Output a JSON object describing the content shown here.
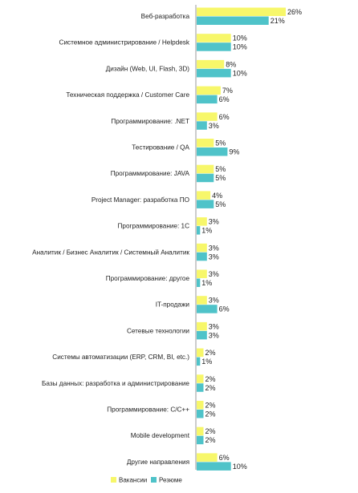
{
  "chart_data": {
    "type": "bar",
    "orientation": "horizontal",
    "title": "",
    "xlabel": "",
    "ylabel": "",
    "unit": "%",
    "xlim": [
      0,
      26
    ],
    "grid": false,
    "legend_position": "bottom",
    "categories": [
      "Веб-разработка",
      "Системное администрирование  / Helpdesk",
      "Дизайн (Web, UI, Flash, 3D)",
      "Техническая  поддержка / Customer Care",
      "Программирование: .NET",
      "Тестирование / QA",
      "Программирование: JAVA",
      "Project Manager: разработка ПО",
      "Программирование: 1С",
      "Аналитик / Бизнес Аналитик / Системный Аналитик",
      "Программирование: другое",
      "IT-продажи",
      "Сетевые технологии",
      "Системы автоматизации (ERP, CRM, BI, etc.)",
      "Базы данных: разработка и администрирование",
      "Программирование: C/C++",
      "Mobile development",
      "Другие направления"
    ],
    "series": [
      {
        "name": "Вакансии",
        "color": "#f7f76a",
        "values": [
          26,
          10,
          8,
          7,
          6,
          5,
          5,
          4,
          3,
          3,
          3,
          3,
          3,
          2,
          2,
          2,
          2,
          6
        ],
        "labels": [
          "26%",
          "10%",
          "8%",
          "7%",
          "6%",
          "5%",
          "5%",
          "4%",
          "3%",
          "3%",
          "3%",
          "3%",
          "3%",
          "2%",
          "2%",
          "2%",
          "2%",
          "6%"
        ]
      },
      {
        "name": "Резюме",
        "color": "#4fc3c9",
        "values": [
          21,
          10,
          10,
          6,
          3,
          9,
          5,
          5,
          1,
          3,
          1,
          6,
          3,
          1,
          2,
          2,
          2,
          10
        ],
        "labels": [
          "21%",
          "10%",
          "10%",
          "6%",
          "3%",
          "9%",
          "5%",
          "5%",
          "1%",
          "3%",
          "1%",
          "6%",
          "3%",
          "1%",
          "2%",
          "2%",
          "2%",
          "10%"
        ]
      }
    ]
  }
}
